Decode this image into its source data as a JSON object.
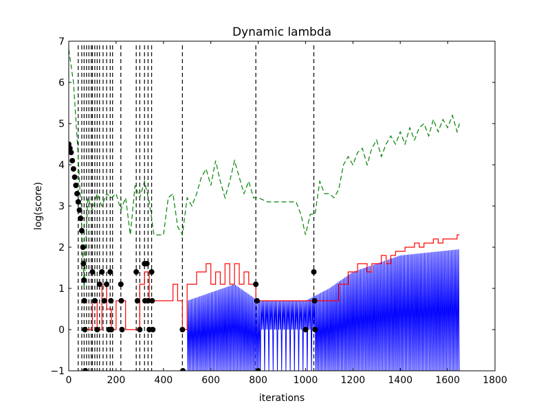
{
  "chart_data": {
    "type": "line",
    "title": "Dynamic lambda",
    "xlabel": "iterations",
    "ylabel": "log(score)",
    "xlim": [
      0,
      1800
    ],
    "ylim": [
      -1,
      7
    ],
    "xticks": [
      0,
      200,
      400,
      600,
      800,
      1000,
      1200,
      1400,
      1600,
      1800
    ],
    "yticks": [
      -1,
      0,
      1,
      2,
      3,
      4,
      5,
      6,
      7
    ],
    "xtick_labels": [
      "0",
      "200",
      "400",
      "600",
      "800",
      "1000",
      "1200",
      "1400",
      "1600",
      "1800"
    ],
    "ytick_labels": [
      "−1",
      "0",
      "1",
      "2",
      "3",
      "4",
      "5",
      "6",
      "7"
    ],
    "grid": false,
    "legend": "none",
    "colors": {
      "red": "#ff0000",
      "blue": "#0000ff",
      "green": "#008000",
      "black": "#000000"
    },
    "restart_iterations": [
      40,
      55,
      65,
      75,
      85,
      95,
      100,
      110,
      120,
      130,
      145,
      160,
      175,
      185,
      220,
      285,
      300,
      320,
      335,
      350,
      480,
      790,
      1035
    ],
    "series": [
      {
        "key": "red",
        "style": "solid",
        "points": [
          [
            60,
            0
          ],
          [
            100,
            0.7
          ],
          [
            120,
            0
          ],
          [
            140,
            1.1
          ],
          [
            160,
            0.5
          ],
          [
            180,
            0
          ],
          [
            200,
            0.7
          ],
          [
            220,
            0.7
          ],
          [
            240,
            0
          ],
          [
            280,
            0
          ],
          [
            300,
            1.1
          ],
          [
            320,
            1.4
          ],
          [
            340,
            0.7
          ],
          [
            360,
            0.7
          ],
          [
            400,
            0.7
          ],
          [
            420,
            0.7
          ],
          [
            440,
            1.1
          ],
          [
            460,
            0.7
          ],
          [
            480,
            0
          ],
          [
            500,
            1.1
          ],
          [
            520,
            1.1
          ],
          [
            540,
            1.4
          ],
          [
            560,
            1.4
          ],
          [
            580,
            1.6
          ],
          [
            600,
            1.1
          ],
          [
            620,
            1.4
          ],
          [
            640,
            1.1
          ],
          [
            660,
            1.6
          ],
          [
            680,
            1.1
          ],
          [
            700,
            1.6
          ],
          [
            720,
            1.1
          ],
          [
            740,
            1.4
          ],
          [
            760,
            1.1
          ],
          [
            790,
            0.7
          ],
          [
            840,
            0.7
          ],
          [
            900,
            0.7
          ],
          [
            980,
            0.7
          ],
          [
            1040,
            0.7
          ],
          [
            1080,
            0.7
          ],
          [
            1100,
            0.7
          ],
          [
            1120,
            0.7
          ],
          [
            1140,
            1.1
          ],
          [
            1160,
            1.1
          ],
          [
            1180,
            1.4
          ],
          [
            1200,
            1.4
          ],
          [
            1220,
            1.6
          ],
          [
            1240,
            1.6
          ],
          [
            1260,
            1.4
          ],
          [
            1280,
            1.6
          ],
          [
            1300,
            1.6
          ],
          [
            1320,
            1.8
          ],
          [
            1340,
            1.6
          ],
          [
            1360,
            1.8
          ],
          [
            1380,
            1.9
          ],
          [
            1400,
            1.9
          ],
          [
            1420,
            2.0
          ],
          [
            1440,
            2.0
          ],
          [
            1460,
            2.1
          ],
          [
            1480,
            2.0
          ],
          [
            1500,
            2.1
          ],
          [
            1520,
            2.1
          ],
          [
            1540,
            2.2
          ],
          [
            1560,
            2.1
          ],
          [
            1580,
            2.2
          ],
          [
            1600,
            2.2
          ],
          [
            1620,
            2.2
          ],
          [
            1640,
            2.3
          ],
          [
            1650,
            2.3
          ]
        ]
      },
      {
        "key": "blue",
        "style": "solid",
        "envelope": [
          [
            500,
            0.7
          ],
          [
            700,
            1.1
          ],
          [
            800,
            0.7
          ],
          [
            1000,
            0.7
          ],
          [
            1100,
            1.0
          ],
          [
            1200,
            1.4
          ],
          [
            1400,
            1.8
          ],
          [
            1650,
            1.95
          ]
        ]
      },
      {
        "key": "green",
        "style": "dashed",
        "points": [
          [
            0,
            6.8
          ],
          [
            20,
            6.0
          ],
          [
            40,
            4.2
          ],
          [
            55,
            2.5
          ],
          [
            65,
            1.0
          ],
          [
            80,
            3.2
          ],
          [
            100,
            2.9
          ],
          [
            120,
            3.3
          ],
          [
            140,
            3.0
          ],
          [
            160,
            3.3
          ],
          [
            180,
            3.2
          ],
          [
            200,
            3.3
          ],
          [
            220,
            2.9
          ],
          [
            240,
            3.2
          ],
          [
            260,
            2.3
          ],
          [
            280,
            3.5
          ],
          [
            300,
            3.2
          ],
          [
            320,
            3.6
          ],
          [
            340,
            3.1
          ],
          [
            360,
            2.3
          ],
          [
            380,
            2.3
          ],
          [
            400,
            2.3
          ],
          [
            420,
            3.2
          ],
          [
            440,
            3.3
          ],
          [
            460,
            2.5
          ],
          [
            480,
            2.3
          ],
          [
            500,
            3.2
          ],
          [
            520,
            3.0
          ],
          [
            540,
            3.3
          ],
          [
            560,
            3.7
          ],
          [
            580,
            3.9
          ],
          [
            600,
            3.5
          ],
          [
            620,
            4.1
          ],
          [
            640,
            3.6
          ],
          [
            660,
            3.2
          ],
          [
            680,
            3.6
          ],
          [
            700,
            4.1
          ],
          [
            720,
            3.7
          ],
          [
            740,
            3.3
          ],
          [
            760,
            3.6
          ],
          [
            780,
            3.2
          ],
          [
            800,
            3.2
          ],
          [
            840,
            3.1
          ],
          [
            880,
            3.1
          ],
          [
            920,
            3.1
          ],
          [
            960,
            3.1
          ],
          [
            980,
            2.8
          ],
          [
            1000,
            2.3
          ],
          [
            1020,
            2.8
          ],
          [
            1040,
            2.8
          ],
          [
            1060,
            3.6
          ],
          [
            1080,
            3.3
          ],
          [
            1100,
            3.3
          ],
          [
            1120,
            3.2
          ],
          [
            1140,
            3.4
          ],
          [
            1160,
            4.0
          ],
          [
            1180,
            4.2
          ],
          [
            1200,
            4.0
          ],
          [
            1220,
            4.3
          ],
          [
            1240,
            4.4
          ],
          [
            1260,
            4.0
          ],
          [
            1280,
            4.4
          ],
          [
            1300,
            4.6
          ],
          [
            1320,
            4.2
          ],
          [
            1340,
            4.5
          ],
          [
            1360,
            4.7
          ],
          [
            1380,
            4.5
          ],
          [
            1400,
            4.8
          ],
          [
            1420,
            4.5
          ],
          [
            1440,
            4.9
          ],
          [
            1460,
            4.6
          ],
          [
            1480,
            4.9
          ],
          [
            1500,
            5.0
          ],
          [
            1520,
            4.7
          ],
          [
            1540,
            5.1
          ],
          [
            1560,
            4.8
          ],
          [
            1580,
            5.1
          ],
          [
            1600,
            4.9
          ],
          [
            1620,
            5.2
          ],
          [
            1640,
            4.8
          ],
          [
            1650,
            5.0
          ]
        ]
      },
      {
        "key": "black-markers",
        "style": "markers",
        "points": [
          [
            0,
            4.5
          ],
          [
            5,
            4.4
          ],
          [
            10,
            4.3
          ],
          [
            15,
            4.1
          ],
          [
            20,
            3.9
          ],
          [
            25,
            3.7
          ],
          [
            30,
            3.5
          ],
          [
            35,
            3.3
          ],
          [
            40,
            3.1
          ],
          [
            45,
            2.9
          ],
          [
            50,
            2.7
          ],
          [
            55,
            2.4
          ],
          [
            60,
            2.0
          ],
          [
            62,
            1.6
          ],
          [
            64,
            1.2
          ],
          [
            66,
            0.7
          ],
          [
            68,
            0.0
          ],
          [
            70,
            -1.0
          ],
          [
            100,
            1.4
          ],
          [
            110,
            0.7
          ],
          [
            120,
            0.0
          ],
          [
            130,
            1.1
          ],
          [
            140,
            1.4
          ],
          [
            150,
            0.7
          ],
          [
            160,
            1.1
          ],
          [
            170,
            0.0
          ],
          [
            175,
            1.4
          ],
          [
            178,
            0.7
          ],
          [
            180,
            0.0
          ],
          [
            220,
            1.1
          ],
          [
            222,
            0.7
          ],
          [
            225,
            0.0
          ],
          [
            285,
            1.4
          ],
          [
            290,
            0.7
          ],
          [
            300,
            0.0
          ],
          [
            320,
            1.6
          ],
          [
            322,
            0.7
          ],
          [
            330,
            1.6
          ],
          [
            335,
            0.7
          ],
          [
            340,
            0.0
          ],
          [
            350,
            1.4
          ],
          [
            352,
            0.7
          ],
          [
            355,
            0.0
          ],
          [
            480,
            0.0
          ],
          [
            482,
            -1.0
          ],
          [
            790,
            1.1
          ],
          [
            795,
            0.7
          ],
          [
            800,
            -1.0
          ],
          [
            1000,
            0.0
          ],
          [
            1035,
            1.4
          ],
          [
            1038,
            0.7
          ],
          [
            1040,
            0.0
          ]
        ]
      }
    ]
  }
}
